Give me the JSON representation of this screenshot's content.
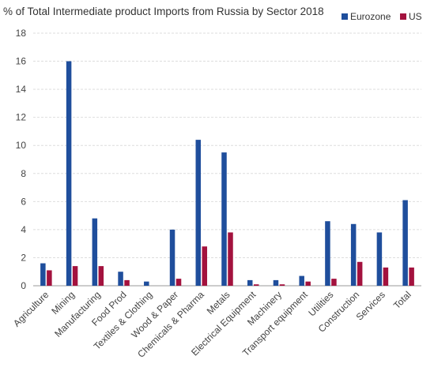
{
  "chart_data": {
    "type": "bar",
    "title": "% of Total Intermediate product Imports from Russia by Sector 2018",
    "xlabel": "",
    "ylabel": "",
    "ylim": [
      0,
      18
    ],
    "yticks": [
      0,
      2,
      4,
      6,
      8,
      10,
      12,
      14,
      16,
      18
    ],
    "grid": true,
    "legend_position": "top-right",
    "categories": [
      "Agriculture",
      "Mining",
      "Manufacturing",
      "Food Prod",
      "Textiles & Clothing",
      "Wood & Paper",
      "Chemicals & Pharma",
      "Metals",
      "Electrical Equipment",
      "Machinery",
      "Transport equipment",
      "Utilities",
      "Construction",
      "Services",
      "Total"
    ],
    "series": [
      {
        "name": "Eurozone",
        "color": "#1f4e9c",
        "values": [
          1.6,
          16.0,
          4.8,
          1.0,
          0.3,
          4.0,
          10.4,
          9.5,
          0.4,
          0.4,
          0.7,
          4.6,
          4.4,
          3.8,
          6.1
        ]
      },
      {
        "name": "US",
        "color": "#a3123e",
        "values": [
          1.1,
          1.4,
          1.4,
          0.4,
          0.0,
          0.5,
          2.8,
          3.8,
          0.1,
          0.1,
          0.3,
          0.5,
          1.7,
          1.3,
          1.3
        ]
      }
    ]
  }
}
